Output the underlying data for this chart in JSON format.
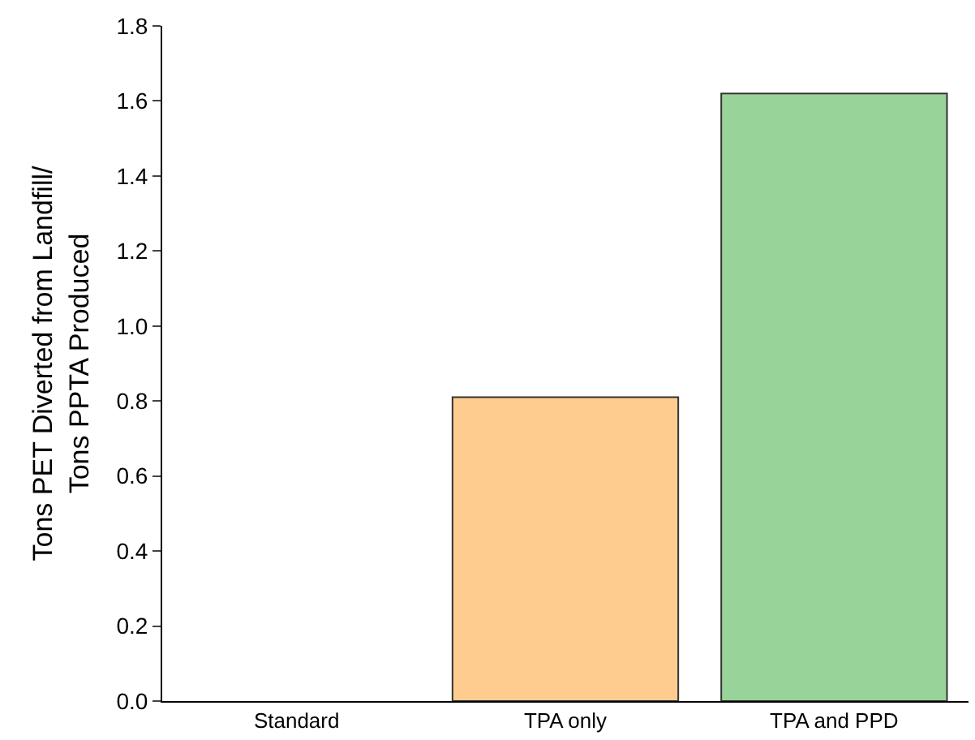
{
  "chart_data": {
    "type": "bar",
    "ylabel": "Tons PET Diverted from Landfill/\nTons PPTA Produced",
    "categories": [
      "Standard",
      "TPA only",
      "TPA and PPD"
    ],
    "values": [
      0,
      0.81,
      1.62
    ],
    "colors": [
      "#ffcc90",
      "#ffcc90",
      "#98d49a"
    ],
    "ylim": [
      0,
      1.8
    ],
    "yticks": [
      {
        "value": 0,
        "label": "0.0"
      },
      {
        "value": 0.2,
        "label": "0.2"
      },
      {
        "value": 0.4,
        "label": "0.4"
      },
      {
        "value": 0.6,
        "label": "0.6"
      },
      {
        "value": 0.8,
        "label": "0.8"
      },
      {
        "value": 1.0,
        "label": "1.0"
      },
      {
        "value": 1.2,
        "label": "1.2"
      },
      {
        "value": 1.4,
        "label": "1.4"
      },
      {
        "value": 1.6,
        "label": "1.6"
      },
      {
        "value": 1.8,
        "label": "1.8"
      }
    ],
    "grid": false,
    "legend": false
  }
}
